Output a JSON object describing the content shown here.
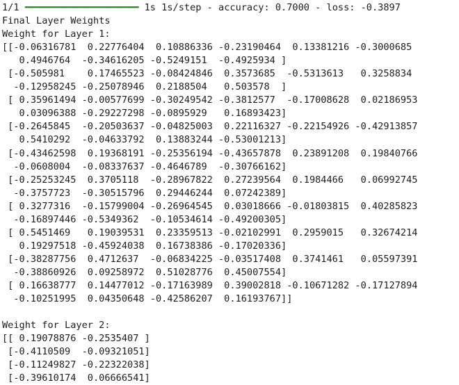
{
  "colors": {
    "background": "#ffffff",
    "text": "#1c1c1c",
    "progress_bar_green": "#2e7d32"
  },
  "progress": {
    "step": "1/1 ",
    "bar": "━━━━━━━━━━━━━━━━━━━━",
    "stats": " 1s 1s/step - accuracy: 0.7000 - loss: -0.3897",
    "time": "1s",
    "rate": "1s/step",
    "accuracy": "0.7000",
    "loss": "-0.3897"
  },
  "headings": {
    "final_weights": "Final Layer Weights",
    "layer1": "Weight for Layer 1:",
    "layer2": "Weight for Layer 2:"
  },
  "layer1_lines": [
    "[[-0.06316781  0.22776404  0.10886336 -0.23190464  0.13381216 -0.3000685",
    "   0.4946764  -0.34616205 -0.5249151  -0.4925934 ]",
    " [-0.505981    0.17465523 -0.08424846  0.3573685  -0.5313613   0.3258834",
    "  -0.12958245 -0.25078946  0.2188504   0.503578  ]",
    " [ 0.35961494 -0.00577699 -0.30249542 -0.3812577  -0.17008628  0.02186953",
    "   0.03096388 -0.29227298 -0.0895929   0.16893423]",
    " [-0.2645845  -0.20503637 -0.04825003  0.22116327 -0.22154926 -0.42913857",
    "   0.5410292  -0.04633792  0.13883244 -0.53001213]",
    " [-0.43462598  0.19368191 -0.25356194 -0.43657878  0.23891208  0.19840766",
    "  -0.0608004  -0.08337637 -0.4646789  -0.30766162]",
    " [-0.25253245  0.3705118  -0.28967822  0.27239564  0.1984466   0.06992745",
    "  -0.3757723  -0.30515796  0.29446244  0.07242389]",
    " [ 0.3277316  -0.15799004 -0.26964545  0.03018666 -0.01803815  0.40285823",
    "  -0.16897446 -0.5349362  -0.10534614 -0.49200305]",
    " [ 0.5451469   0.19039531  0.23359513 -0.02102991  0.2959015   0.32674214",
    "   0.19297518 -0.45924038  0.16738386 -0.17020336]",
    " [-0.38287756  0.4712637  -0.06834225 -0.03517408  0.3741461   0.05597391",
    "  -0.38860926  0.09258972  0.51028776  0.45007554]",
    " [ 0.16638777  0.14477012 -0.17163989  0.39002818 -0.10671282 -0.17127894",
    "  -0.10251995  0.04350648 -0.42586207  0.16193767]]"
  ],
  "layer2_lines": [
    "[[ 0.19078876 -0.2535407 ]",
    " [-0.4110509  -0.09321051]",
    " [-0.11249827 -0.22322038]",
    " [-0.39610174  0.06666541]"
  ]
}
